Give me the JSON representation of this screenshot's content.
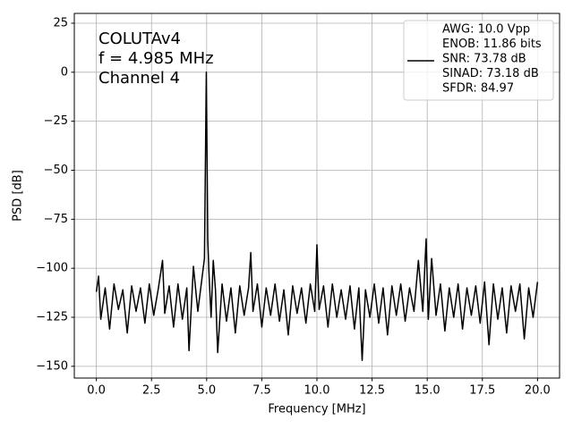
{
  "chart_data": {
    "type": "line",
    "xlabel": "Frequency [MHz]",
    "ylabel": "PSD [dB]",
    "annotation": [
      "COLUTAv4",
      "f = 4.985 MHz",
      "Channel 4"
    ],
    "xlim": [
      -1,
      21
    ],
    "ylim": [
      -156,
      30
    ],
    "xticks": [
      {
        "value": 0,
        "label": "0.0"
      },
      2.5,
      {
        "value": 5,
        "label": "5.0"
      },
      7.5,
      {
        "value": 10,
        "label": "10.0"
      },
      12.5,
      {
        "value": 15,
        "label": "15.0"
      },
      17.5,
      {
        "value": 20,
        "label": "20.0"
      }
    ],
    "yticks": [
      {
        "value": -150,
        "label": "−150"
      },
      {
        "value": -125,
        "label": "−125"
      },
      {
        "value": -100,
        "label": "−100"
      },
      {
        "value": -75,
        "label": "−75"
      },
      {
        "value": -50,
        "label": "−50"
      },
      {
        "value": -25,
        "label": "−25"
      },
      0,
      25
    ],
    "grid": true,
    "legend": "upper right",
    "x": [
      0.0,
      0.1,
      0.2,
      0.4,
      0.6,
      0.8,
      1.0,
      1.2,
      1.4,
      1.6,
      1.8,
      2.0,
      2.2,
      2.4,
      2.6,
      2.8,
      3.0,
      3.1,
      3.3,
      3.5,
      3.7,
      3.9,
      4.1,
      4.2,
      4.4,
      4.6,
      4.8,
      4.9,
      4.985,
      5.05,
      5.1,
      5.2,
      5.3,
      5.4,
      5.5,
      5.7,
      5.9,
      6.1,
      6.3,
      6.5,
      6.7,
      6.9,
      7.0,
      7.1,
      7.3,
      7.5,
      7.7,
      7.9,
      8.1,
      8.3,
      8.5,
      8.7,
      8.9,
      9.1,
      9.3,
      9.5,
      9.7,
      9.9,
      10.0,
      10.1,
      10.3,
      10.5,
      10.7,
      10.9,
      11.1,
      11.3,
      11.5,
      11.7,
      11.9,
      12.05,
      12.2,
      12.4,
      12.6,
      12.8,
      13.0,
      13.2,
      13.4,
      13.6,
      13.8,
      14.0,
      14.2,
      14.4,
      14.6,
      14.8,
      14.95,
      15.05,
      15.2,
      15.4,
      15.6,
      15.8,
      16.0,
      16.2,
      16.4,
      16.6,
      16.8,
      17.0,
      17.2,
      17.4,
      17.6,
      17.8,
      18.0,
      18.2,
      18.4,
      18.6,
      18.8,
      19.0,
      19.2,
      19.4,
      19.6,
      19.8,
      20.0
    ],
    "series": [
      {
        "name": [
          "AWG: 10.0 Vpp",
          "ENOB: 11.86 bits",
          "SNR: 73.78 dB",
          "SINAD: 73.18 dB",
          "SFDR: 84.97"
        ],
        "color": "#000000",
        "values": [
          -112,
          -104,
          -126,
          -110,
          -131,
          -108,
          -121,
          -111,
          -133,
          -109,
          -122,
          -110,
          -128,
          -108,
          -124,
          -111,
          -96,
          -123,
          -109,
          -130,
          -108,
          -126,
          -110,
          -142,
          -99,
          -122,
          -104,
          -95,
          0,
          -85,
          -101,
          -125,
          -96,
          -111,
          -143,
          -108,
          -127,
          -110,
          -133,
          -109,
          -124,
          -110,
          -92,
          -122,
          -108,
          -130,
          -110,
          -124,
          -108,
          -127,
          -111,
          -134,
          -109,
          -123,
          -110,
          -128,
          -108,
          -122,
          -88,
          -121,
          -109,
          -130,
          -108,
          -125,
          -111,
          -126,
          -109,
          -131,
          -110,
          -147,
          -111,
          -125,
          -108,
          -128,
          -110,
          -134,
          -109,
          -124,
          -108,
          -127,
          -110,
          -122,
          -96,
          -122,
          -85,
          -126,
          -95,
          -124,
          -108,
          -132,
          -110,
          -125,
          -108,
          -131,
          -110,
          -124,
          -109,
          -128,
          -107,
          -139,
          -108,
          -126,
          -110,
          -133,
          -109,
          -122,
          -108,
          -136,
          -110,
          -125,
          -107
        ]
      }
    ]
  }
}
